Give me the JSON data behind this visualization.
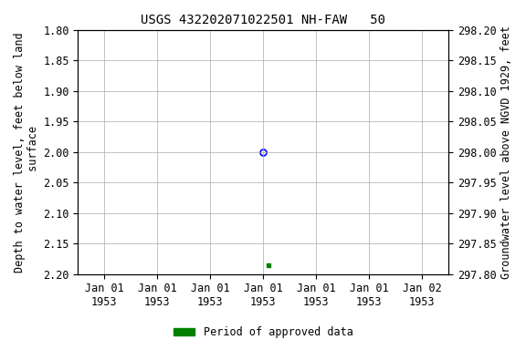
{
  "title": "USGS 432202071022501 NH-FAW   50",
  "ylabel_left": "Depth to water level, feet below land\n surface",
  "ylabel_right": "Groundwater level above NGVD 1929, feet",
  "ylim_left": [
    2.2,
    1.8
  ],
  "ylim_right": [
    297.8,
    298.2
  ],
  "yticks_left": [
    1.8,
    1.85,
    1.9,
    1.95,
    2.0,
    2.05,
    2.1,
    2.15,
    2.2
  ],
  "yticks_right": [
    298.2,
    298.15,
    298.1,
    298.05,
    298.0,
    297.95,
    297.9,
    297.85,
    297.8
  ],
  "xtick_labels": [
    "Jan 01\n1953",
    "Jan 01\n1953",
    "Jan 01\n1953",
    "Jan 01\n1953",
    "Jan 01\n1953",
    "Jan 01\n1953",
    "Jan 02\n1953"
  ],
  "xtick_positions": [
    0,
    1,
    2,
    3,
    4,
    5,
    6
  ],
  "xlim": [
    -0.5,
    6.5
  ],
  "point_open_x": 3.0,
  "point_open_value": 2.0,
  "point_open_color": "#0000ff",
  "point_filled_x": 3.1,
  "point_filled_value": 2.185,
  "point_filled_color": "#008000",
  "legend_label": "Period of approved data",
  "legend_color": "#008000",
  "grid_color": "#aaaaaa",
  "bg_color": "#ffffff",
  "font_family": "monospace",
  "title_fontsize": 10,
  "axis_label_fontsize": 8.5,
  "tick_fontsize": 8.5
}
